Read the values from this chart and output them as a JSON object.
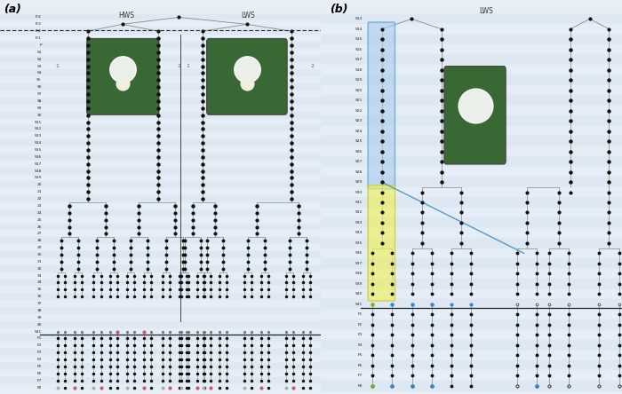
{
  "title_a": "(a)",
  "title_b": "(b)",
  "bg_color": "#e8eef5",
  "row_bg_even": "#dde8f2",
  "row_bg_odd": "#e5eef7",
  "row_labels_a": [
    "P-4",
    "P-3",
    "P-2",
    "P-1",
    "P",
    "S1",
    "S2",
    "S3",
    "S4",
    "S5",
    "S6",
    "S7",
    "S8",
    "S9",
    "10",
    "S11",
    "S12",
    "S13",
    "S14",
    "S15",
    "S16",
    "S17",
    "S18",
    "S19",
    "20",
    "21",
    "22",
    "23",
    "24",
    "25",
    "26",
    "27",
    "28",
    "29",
    "30",
    "31",
    "32",
    "33",
    "34",
    "35",
    "36",
    "37",
    "38",
    "39",
    "40",
    "S41",
    "F1",
    "F2",
    "F3",
    "F4",
    "F5",
    "F6",
    "F7",
    "F8"
  ],
  "row_labels_b": [
    "S13",
    "S14",
    "S15",
    "S16",
    "S17",
    "S18",
    "S19",
    "S20",
    "S21",
    "S22",
    "S23",
    "S24",
    "S25",
    "S26",
    "S27",
    "S28",
    "S29",
    "S30",
    "S31",
    "S32",
    "S33",
    "S34",
    "S35",
    "S36",
    "S37",
    "S38",
    "S39",
    "S40",
    "S41",
    "F1",
    "F2",
    "F3",
    "F4",
    "F5",
    "F6",
    "F7",
    "F8"
  ],
  "hws_label": "HWS",
  "lws_label": "LWS",
  "dc": "#111111",
  "dc_pink": "#d0508a",
  "dc_gray": "#aaaaaa",
  "dc_blue": "#3388cc",
  "dc_green": "#7aaa22",
  "lc": "#888888",
  "lc_blue": "#5599cc"
}
